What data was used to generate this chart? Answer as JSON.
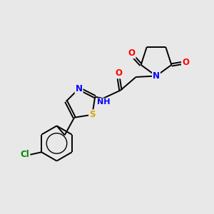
{
  "background_color": "#e8e8e8",
  "bond_color": "#000000",
  "atom_colors": {
    "O": "#ff0000",
    "N": "#0000ff",
    "S": "#ccaa00",
    "Cl": "#008800",
    "C": "#000000",
    "H": "#000000"
  },
  "figsize": [
    3.0,
    3.0
  ],
  "dpi": 100,
  "lw": 1.4,
  "fontsize": 8.5
}
